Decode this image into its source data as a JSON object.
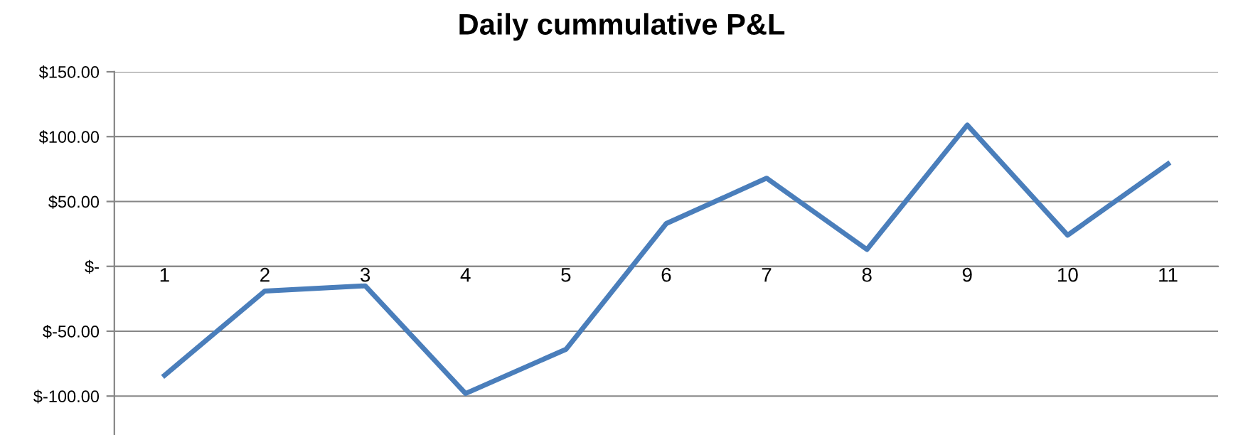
{
  "chart_data": {
    "type": "line",
    "title": "Daily cummulative P&L",
    "categories": [
      "1",
      "2",
      "3",
      "4",
      "5",
      "6",
      "7",
      "8",
      "9",
      "10",
      "11"
    ],
    "series": [
      {
        "color": "#4a7ebb",
        "values": [
          -84,
          -19,
          -15,
          -98,
          -64,
          33,
          68,
          13,
          109,
          24,
          79
        ]
      }
    ],
    "ylim": [
      -130,
      150
    ],
    "yticks": [
      {
        "value": -100,
        "label": "$-100.00"
      },
      {
        "value": -50,
        "label": "$-50.00"
      },
      {
        "value": 0,
        "label": "$-"
      },
      {
        "value": 50,
        "label": "$50.00"
      },
      {
        "value": 100,
        "label": "$100.00"
      },
      {
        "value": 150,
        "label": "$150.00"
      }
    ],
    "grid": "y",
    "legend": false,
    "marker": "none",
    "line_style": "solid"
  }
}
